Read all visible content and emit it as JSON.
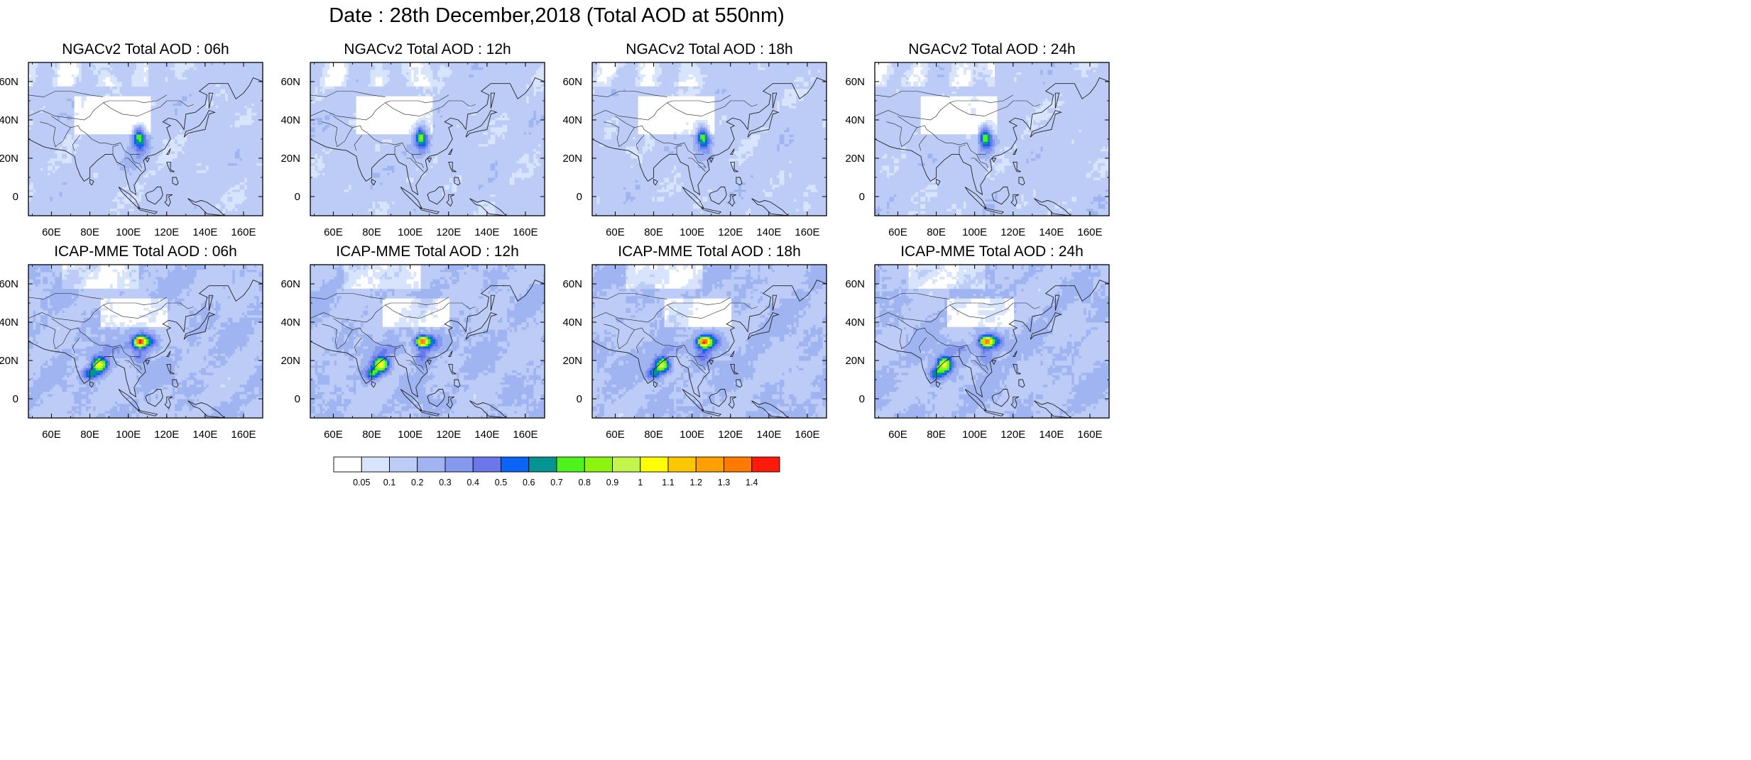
{
  "figure": {
    "title": "Date : 28th December,2018 (Total AOD at 550nm)"
  },
  "axes": {
    "x_ticks": [
      "60E",
      "80E",
      "100E",
      "120E",
      "140E",
      "160E"
    ],
    "x_tick_values": [
      60,
      80,
      100,
      120,
      140,
      160
    ],
    "y_ticks": [
      "60N",
      "40N",
      "20N",
      "0"
    ],
    "y_tick_values": [
      60,
      40,
      20,
      0
    ],
    "lon_range": [
      48,
      170
    ],
    "lat_range": [
      -10,
      70
    ]
  },
  "panels": [
    {
      "title": "NGACv2 Total AOD : 06h",
      "model": "NGACv2",
      "hour": "06h"
    },
    {
      "title": "NGACv2 Total AOD : 12h",
      "model": "NGACv2",
      "hour": "12h"
    },
    {
      "title": "NGACv2 Total AOD : 18h",
      "model": "NGACv2",
      "hour": "18h"
    },
    {
      "title": "NGACv2 Total AOD : 24h",
      "model": "NGACv2",
      "hour": "24h"
    },
    {
      "title": "ICAP-MME Total AOD : 06h",
      "model": "ICAP-MME",
      "hour": "06h"
    },
    {
      "title": "ICAP-MME Total AOD : 12h",
      "model": "ICAP-MME",
      "hour": "12h"
    },
    {
      "title": "ICAP-MME Total AOD : 18h",
      "model": "ICAP-MME",
      "hour": "18h"
    },
    {
      "title": "ICAP-MME Total AOD : 24h",
      "model": "ICAP-MME",
      "hour": "24h"
    }
  ],
  "colorbar": {
    "labels": [
      "0.05",
      "0.1",
      "0.2",
      "0.3",
      "0.4",
      "0.5",
      "0.6",
      "0.7",
      "0.8",
      "0.9",
      "1",
      "1.1",
      "1.2",
      "1.3",
      "1.4"
    ],
    "colors": [
      "#ffffff",
      "#d8e4fb",
      "#bcccf6",
      "#9fb4f1",
      "#8599ee",
      "#6b78ec",
      "#0a64f5",
      "#059491",
      "#4ef31c",
      "#8cf50f",
      "#c4f54d",
      "#ffff00",
      "#ffc700",
      "#ffa000",
      "#ff7a00",
      "#ff1a0a"
    ]
  },
  "features": {
    "ngac_hotspot": {
      "lon": 106,
      "lat": 32
    },
    "icap_hotspots": [
      {
        "lon": 84,
        "lat": 20
      },
      {
        "lon": 106,
        "lat": 30
      }
    ]
  }
}
